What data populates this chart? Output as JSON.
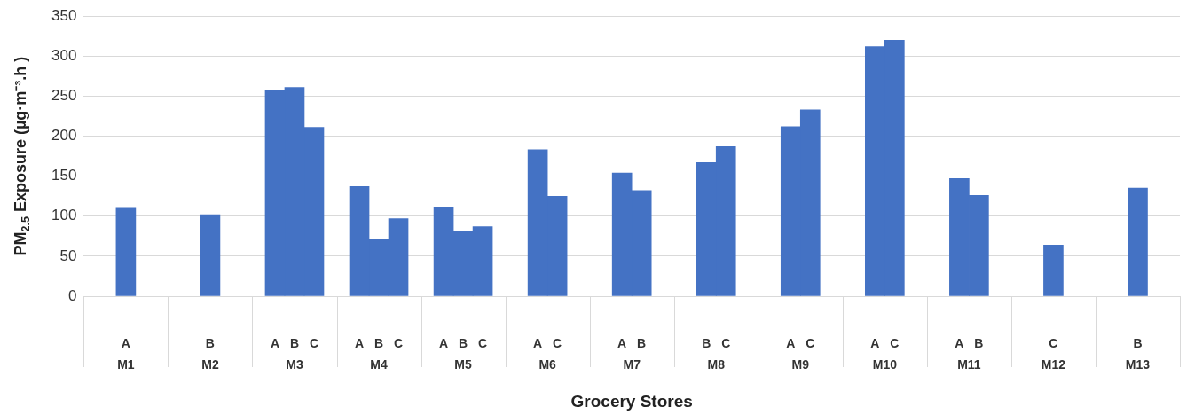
{
  "chart_data": {
    "type": "bar",
    "xlabel": "Grocery Stores",
    "ylabel": "PM$_{2.5}$ Exposure (µg·m⁻³.h )",
    "categories": [
      "M1",
      "M2",
      "M3",
      "M4",
      "M5",
      "M6",
      "M7",
      "M8",
      "M9",
      "M10",
      "M11",
      "M12",
      "M13"
    ],
    "series": [
      {
        "name": "A",
        "color": "#4472c4",
        "values": [
          110,
          null,
          258,
          137,
          111,
          183,
          154,
          null,
          212,
          312,
          147,
          null,
          null
        ]
      },
      {
        "name": "B",
        "color": "#4472c4",
        "values": [
          null,
          102,
          261,
          71,
          81,
          null,
          132,
          167,
          null,
          null,
          126,
          null,
          135
        ]
      },
      {
        "name": "C",
        "color": "#4472c4",
        "values": [
          null,
          null,
          211,
          97,
          87,
          125,
          null,
          187,
          233,
          320,
          null,
          64,
          null
        ]
      }
    ],
    "ylim": [
      0,
      350
    ],
    "yticks": [
      0,
      50,
      100,
      150,
      200,
      250,
      300,
      350
    ],
    "grid": "y",
    "legend": false
  }
}
